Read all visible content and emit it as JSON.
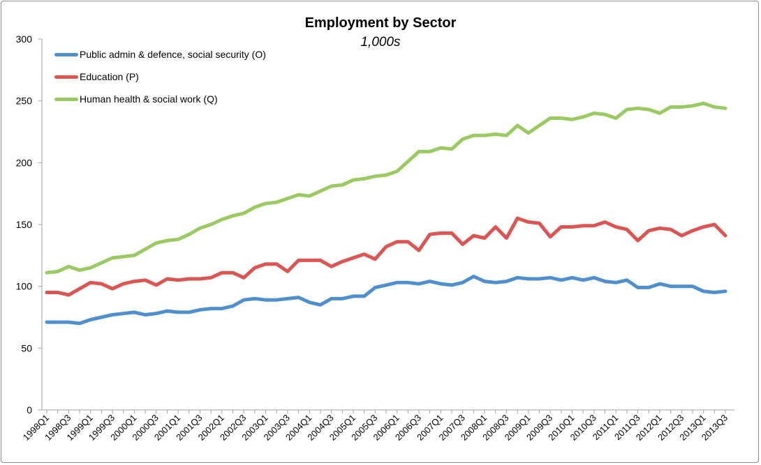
{
  "chart_data": {
    "type": "line",
    "title": "Employment by Sector",
    "subtitle": "1,000s",
    "xlabel": "",
    "ylabel": "",
    "ylim": [
      0,
      300
    ],
    "yticks": [
      0,
      50,
      100,
      150,
      200,
      250,
      300
    ],
    "grid": false,
    "legend_position": "top-left",
    "categories": [
      "1998Q1",
      "1998Q2",
      "1998Q3",
      "1998Q4",
      "1999Q1",
      "1999Q2",
      "1999Q3",
      "1999Q4",
      "2000Q1",
      "2000Q2",
      "2000Q3",
      "2000Q4",
      "2001Q1",
      "2001Q2",
      "2001Q3",
      "2001Q4",
      "2002Q1",
      "2002Q2",
      "2002Q3",
      "2002Q4",
      "2003Q1",
      "2003Q2",
      "2003Q3",
      "2003Q4",
      "2004Q1",
      "2004Q2",
      "2004Q3",
      "2004Q4",
      "2005Q1",
      "2005Q2",
      "2005Q3",
      "2005Q4",
      "2006Q1",
      "2006Q2",
      "2006Q3",
      "2006Q4",
      "2007Q1",
      "2007Q2",
      "2007Q3",
      "2007Q4",
      "2008Q1",
      "2008Q2",
      "2008Q3",
      "2008Q4",
      "2009Q1",
      "2009Q2",
      "2009Q3",
      "2009Q4",
      "2010Q1",
      "2010Q2",
      "2010Q3",
      "2010Q4",
      "2011Q1",
      "2011Q2",
      "2011Q3",
      "2011Q4",
      "2012Q1",
      "2012Q2",
      "2012Q3",
      "2012Q4",
      "2013Q1",
      "2013Q2",
      "2013Q3"
    ],
    "series": [
      {
        "name": "Public admin & defence, social security (O)",
        "color": "#4f8fcd",
        "values": [
          71,
          71,
          71,
          70,
          73,
          75,
          77,
          78,
          79,
          77,
          78,
          80,
          79,
          79,
          81,
          82,
          82,
          84,
          89,
          90,
          89,
          89,
          90,
          91,
          87,
          85,
          90,
          90,
          92,
          92,
          99,
          101,
          103,
          103,
          102,
          104,
          102,
          101,
          103,
          108,
          104,
          103,
          104,
          107,
          106,
          106,
          107,
          105,
          107,
          105,
          107,
          104,
          103,
          105,
          99,
          99,
          102,
          100,
          100,
          100,
          96,
          95,
          96
        ]
      },
      {
        "name": "Education (P)",
        "color": "#dd5552",
        "values": [
          95,
          95,
          93,
          98,
          103,
          102,
          98,
          102,
          104,
          105,
          101,
          106,
          105,
          106,
          106,
          107,
          111,
          111,
          107,
          115,
          118,
          118,
          112,
          121,
          121,
          121,
          116,
          120,
          123,
          126,
          122,
          132,
          136,
          136,
          129,
          142,
          143,
          143,
          134,
          141,
          139,
          148,
          139,
          155,
          152,
          151,
          140,
          148,
          148,
          149,
          149,
          152,
          148,
          146,
          137,
          145,
          147,
          146,
          141,
          145,
          148,
          150,
          141
        ]
      },
      {
        "name": "Human health & social work (Q)",
        "color": "#9bca63",
        "values": [
          111,
          112,
          116,
          113,
          115,
          119,
          123,
          124,
          125,
          130,
          135,
          137,
          138,
          142,
          147,
          150,
          154,
          157,
          159,
          164,
          167,
          168,
          171,
          174,
          173,
          177,
          181,
          182,
          186,
          187,
          189,
          190,
          193,
          201,
          209,
          209,
          212,
          211,
          219,
          222,
          222,
          223,
          222,
          230,
          224,
          230,
          236,
          236,
          235,
          237,
          240,
          239,
          236,
          243,
          244,
          243,
          240,
          245,
          245,
          246,
          248,
          245,
          244
        ]
      }
    ]
  }
}
